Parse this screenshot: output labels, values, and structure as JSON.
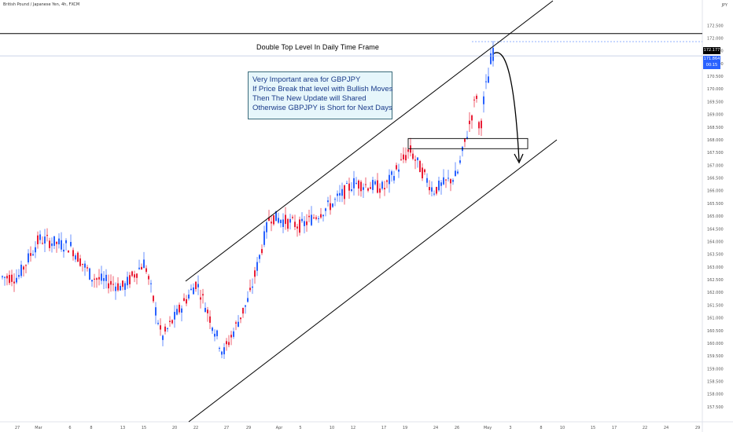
{
  "header": {
    "title": "British Pound / Japanese Yen, 4h, FXCM",
    "currency": "JPY"
  },
  "annotations": {
    "double_top_label": "Double Top Level In Daily Time Frame",
    "note_lines": [
      "Very Important area for GBPJPY",
      "If Price Break that level with Bullish Moves",
      "Then The New Update will Shared",
      "Otherwise GBPJPY is Short for Next Days"
    ]
  },
  "price_tags": {
    "level": "172.177",
    "current": "171.864",
    "countdown": "00:15",
    "level_color": "#000000",
    "current_color": "#2962ff"
  },
  "colors": {
    "up": "#2962ff",
    "down": "#e91e36",
    "line": "#000000"
  },
  "chart_data": {
    "type": "candlestick",
    "title": "British Pound / Japanese Yen, 4h, FXCM",
    "ylim": [
      157.25,
      173.25
    ],
    "y_ticks": [
      "172.500",
      "172.000",
      "171.500",
      "171.000",
      "170.500",
      "170.000",
      "169.500",
      "169.000",
      "168.500",
      "168.000",
      "167.500",
      "167.000",
      "166.500",
      "166.000",
      "165.500",
      "165.000",
      "164.500",
      "164.000",
      "163.500",
      "163.000",
      "162.500",
      "162.000",
      "161.500",
      "161.000",
      "160.500",
      "160.000",
      "159.500",
      "159.000",
      "158.500",
      "158.000",
      "157.500"
    ],
    "x_ticks": [
      "27",
      "Mar",
      "6",
      "8",
      "13",
      "15",
      "20",
      "22",
      "27",
      "29",
      "Apr",
      "5",
      "10",
      "12",
      "17",
      "19",
      "24",
      "26",
      "May",
      "3",
      "8",
      "10",
      "15",
      "17",
      "22",
      "24",
      "29"
    ],
    "approx_path": [
      {
        "label": "27",
        "close": 162.6
      },
      {
        "label": "Mar",
        "close": 164.1
      },
      {
        "label": "6",
        "close": 163.8
      },
      {
        "label": "8",
        "close": 162.6
      },
      {
        "label": "13",
        "close": 162.2
      },
      {
        "label": "15",
        "close": 163.2
      },
      {
        "label": "20",
        "close": 160.2
      },
      {
        "label": "22",
        "close": 162.4
      },
      {
        "label": "27",
        "close": 159.6
      },
      {
        "label": "29",
        "close": 161.8
      },
      {
        "label": "Apr",
        "close": 165.0
      },
      {
        "label": "5",
        "close": 164.6
      },
      {
        "label": "10",
        "close": 165.5
      },
      {
        "label": "12",
        "close": 166.3
      },
      {
        "label": "17",
        "close": 166.1
      },
      {
        "label": "19",
        "close": 167.6
      },
      {
        "label": "24",
        "close": 166.0
      },
      {
        "label": "26",
        "close": 166.6
      },
      {
        "label": "May",
        "close": 171.9
      }
    ],
    "horizontal_levels": [
      172.177,
      171.3
    ],
    "zone": [
      167.65,
      168.05
    ]
  }
}
